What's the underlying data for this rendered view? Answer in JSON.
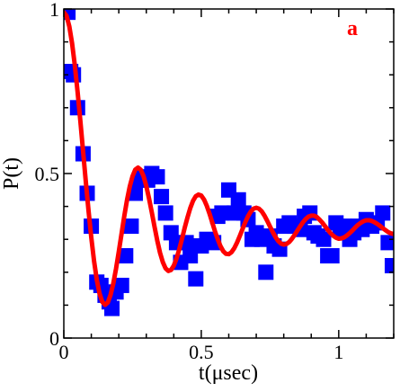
{
  "chart_data": {
    "type": "scatter",
    "title": "",
    "xlabel": "t(μsec)",
    "ylabel": "P(t)",
    "panel_label": "a",
    "xlim": [
      0,
      1.2
    ],
    "ylim": [
      0,
      1.0
    ],
    "x_ticks": [
      {
        "value": 0,
        "label": "0"
      },
      {
        "value": 0.5,
        "label": "0.5"
      },
      {
        "value": 1,
        "label": "1"
      }
    ],
    "y_ticks": [
      {
        "value": 0,
        "label": "0"
      },
      {
        "value": 0.5,
        "label": "0.5"
      },
      {
        "value": 1,
        "label": "1"
      }
    ],
    "grid": false,
    "legend": "none",
    "colors": {
      "scatter": "#0000ff",
      "fit": "#ff0000",
      "panel_label": "#ff0000",
      "axes": "#000000"
    },
    "series": [
      {
        "kind": "scatter",
        "marker": "square",
        "points": [
          [
            0.0,
            1.0
          ],
          [
            0.015,
            0.99
          ],
          [
            0.025,
            0.81
          ],
          [
            0.035,
            0.8
          ],
          [
            0.05,
            0.7
          ],
          [
            0.07,
            0.56
          ],
          [
            0.085,
            0.44
          ],
          [
            0.1,
            0.34
          ],
          [
            0.12,
            0.17
          ],
          [
            0.135,
            0.16
          ],
          [
            0.15,
            0.13
          ],
          [
            0.165,
            0.11
          ],
          [
            0.175,
            0.09
          ],
          [
            0.19,
            0.14
          ],
          [
            0.21,
            0.16
          ],
          [
            0.225,
            0.25
          ],
          [
            0.245,
            0.34
          ],
          [
            0.26,
            0.44
          ],
          [
            0.275,
            0.48
          ],
          [
            0.29,
            0.49
          ],
          [
            0.305,
            0.48
          ],
          [
            0.32,
            0.5
          ],
          [
            0.34,
            0.49
          ],
          [
            0.355,
            0.43
          ],
          [
            0.37,
            0.38
          ],
          [
            0.39,
            0.32
          ],
          [
            0.41,
            0.29
          ],
          [
            0.425,
            0.23
          ],
          [
            0.445,
            0.29
          ],
          [
            0.46,
            0.25
          ],
          [
            0.48,
            0.18
          ],
          [
            0.5,
            0.28
          ],
          [
            0.52,
            0.3
          ],
          [
            0.545,
            0.29
          ],
          [
            0.56,
            0.37
          ],
          [
            0.575,
            0.38
          ],
          [
            0.6,
            0.45
          ],
          [
            0.62,
            0.38
          ],
          [
            0.635,
            0.42
          ],
          [
            0.655,
            0.38
          ],
          [
            0.67,
            0.36
          ],
          [
            0.685,
            0.3
          ],
          [
            0.7,
            0.32
          ],
          [
            0.72,
            0.3
          ],
          [
            0.735,
            0.2
          ],
          [
            0.75,
            0.31
          ],
          [
            0.765,
            0.28
          ],
          [
            0.785,
            0.27
          ],
          [
            0.8,
            0.34
          ],
          [
            0.82,
            0.35
          ],
          [
            0.84,
            0.34
          ],
          [
            0.86,
            0.33
          ],
          [
            0.875,
            0.37
          ],
          [
            0.895,
            0.38
          ],
          [
            0.91,
            0.32
          ],
          [
            0.925,
            0.31
          ],
          [
            0.945,
            0.3
          ],
          [
            0.96,
            0.25
          ],
          [
            0.975,
            0.25
          ],
          [
            0.99,
            0.35
          ],
          [
            1.005,
            0.33
          ],
          [
            1.02,
            0.34
          ],
          [
            1.04,
            0.3
          ],
          [
            1.055,
            0.32
          ],
          [
            1.07,
            0.34
          ],
          [
            1.085,
            0.33
          ],
          [
            1.1,
            0.36
          ],
          [
            1.12,
            0.34
          ],
          [
            1.14,
            0.35
          ],
          [
            1.16,
            0.38
          ],
          [
            1.18,
            0.29
          ],
          [
            1.195,
            0.22
          ]
        ]
      },
      {
        "kind": "line",
        "points": [
          [
            0.0,
            0.99
          ],
          [
            0.01,
            0.979
          ],
          [
            0.02,
            0.947
          ],
          [
            0.03,
            0.896
          ],
          [
            0.04,
            0.829
          ],
          [
            0.05,
            0.749
          ],
          [
            0.06,
            0.661
          ],
          [
            0.07,
            0.568
          ],
          [
            0.08,
            0.475
          ],
          [
            0.09,
            0.386
          ],
          [
            0.1,
            0.305
          ],
          [
            0.11,
            0.234
          ],
          [
            0.12,
            0.177
          ],
          [
            0.13,
            0.135
          ],
          [
            0.14,
            0.11
          ],
          [
            0.15,
            0.101
          ],
          [
            0.16,
            0.108
          ],
          [
            0.17,
            0.131
          ],
          [
            0.18,
            0.166
          ],
          [
            0.19,
            0.211
          ],
          [
            0.2,
            0.263
          ],
          [
            0.21,
            0.317
          ],
          [
            0.22,
            0.371
          ],
          [
            0.23,
            0.42
          ],
          [
            0.24,
            0.461
          ],
          [
            0.25,
            0.492
          ],
          [
            0.26,
            0.512
          ],
          [
            0.27,
            0.518
          ],
          [
            0.28,
            0.511
          ],
          [
            0.29,
            0.492
          ],
          [
            0.3,
            0.462
          ],
          [
            0.31,
            0.424
          ],
          [
            0.32,
            0.382
          ],
          [
            0.33,
            0.338
          ],
          [
            0.34,
            0.296
          ],
          [
            0.35,
            0.259
          ],
          [
            0.36,
            0.231
          ],
          [
            0.37,
            0.212
          ],
          [
            0.38,
            0.204
          ],
          [
            0.39,
            0.207
          ],
          [
            0.4,
            0.22
          ],
          [
            0.41,
            0.242
          ],
          [
            0.42,
            0.27
          ],
          [
            0.43,
            0.302
          ],
          [
            0.44,
            0.336
          ],
          [
            0.45,
            0.367
          ],
          [
            0.46,
            0.395
          ],
          [
            0.47,
            0.417
          ],
          [
            0.48,
            0.431
          ],
          [
            0.49,
            0.436
          ],
          [
            0.5,
            0.433
          ],
          [
            0.51,
            0.421
          ],
          [
            0.52,
            0.402
          ],
          [
            0.53,
            0.378
          ],
          [
            0.54,
            0.351
          ],
          [
            0.55,
            0.324
          ],
          [
            0.56,
            0.3
          ],
          [
            0.57,
            0.279
          ],
          [
            0.58,
            0.264
          ],
          [
            0.59,
            0.256
          ],
          [
            0.6,
            0.255
          ],
          [
            0.61,
            0.261
          ],
          [
            0.62,
            0.273
          ],
          [
            0.63,
            0.29
          ],
          [
            0.64,
            0.31
          ],
          [
            0.65,
            0.331
          ],
          [
            0.66,
            0.352
          ],
          [
            0.67,
            0.37
          ],
          [
            0.68,
            0.384
          ],
          [
            0.69,
            0.393
          ],
          [
            0.7,
            0.396
          ],
          [
            0.71,
            0.393
          ],
          [
            0.72,
            0.385
          ],
          [
            0.73,
            0.372
          ],
          [
            0.74,
            0.356
          ],
          [
            0.75,
            0.339
          ],
          [
            0.76,
            0.322
          ],
          [
            0.77,
            0.307
          ],
          [
            0.78,
            0.295
          ],
          [
            0.79,
            0.287
          ],
          [
            0.8,
            0.284
          ],
          [
            0.81,
            0.286
          ],
          [
            0.82,
            0.292
          ],
          [
            0.83,
            0.302
          ],
          [
            0.84,
            0.314
          ],
          [
            0.85,
            0.327
          ],
          [
            0.86,
            0.34
          ],
          [
            0.87,
            0.352
          ],
          [
            0.88,
            0.362
          ],
          [
            0.89,
            0.369
          ],
          [
            0.9,
            0.372
          ],
          [
            0.91,
            0.372
          ],
          [
            0.92,
            0.368
          ],
          [
            0.93,
            0.36
          ],
          [
            0.94,
            0.351
          ],
          [
            0.95,
            0.34
          ],
          [
            0.96,
            0.329
          ],
          [
            0.97,
            0.319
          ],
          [
            0.98,
            0.311
          ],
          [
            0.99,
            0.305
          ],
          [
            1.0,
            0.302
          ],
          [
            1.01,
            0.303
          ],
          [
            1.02,
            0.306
          ],
          [
            1.03,
            0.312
          ],
          [
            1.04,
            0.319
          ],
          [
            1.05,
            0.327
          ],
          [
            1.06,
            0.336
          ],
          [
            1.07,
            0.344
          ],
          [
            1.08,
            0.35
          ],
          [
            1.09,
            0.355
          ],
          [
            1.1,
            0.358
          ],
          [
            1.11,
            0.358
          ],
          [
            1.12,
            0.356
          ],
          [
            1.13,
            0.352
          ],
          [
            1.14,
            0.347
          ],
          [
            1.15,
            0.341
          ],
          [
            1.16,
            0.334
          ],
          [
            1.17,
            0.328
          ],
          [
            1.18,
            0.322
          ],
          [
            1.19,
            0.318
          ],
          [
            1.2,
            0.316
          ]
        ]
      }
    ]
  }
}
